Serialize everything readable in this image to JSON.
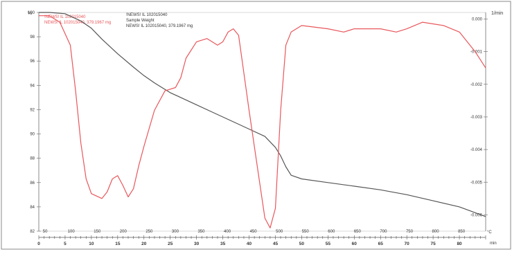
{
  "legend": {
    "red": {
      "line1": "!NEWS! IL 102015040",
      "line2": "NEWS! IL 102015040, 379.1967 mg"
    },
    "gray": {
      "line1": "!NEWS! IL 102015040",
      "line2": "Sample Weight",
      "line3": "NEWS! IL 102015040, 379.1967 mg"
    }
  },
  "chart_data": {
    "type": "line",
    "left_axis": {
      "unit": "%",
      "ticks": [
        "100",
        "98",
        "96",
        "94",
        "92",
        "90",
        "88",
        "86",
        "84",
        "82"
      ],
      "range": [
        82,
        100
      ]
    },
    "right_axis": {
      "unit": "1/min",
      "ticks": [
        "0.000",
        "-0.001",
        "-0.002",
        "-0.003",
        "-0.004",
        "-0.005",
        "-0.006"
      ],
      "range": [
        -0.0065,
        0.0002
      ]
    },
    "temperature_axis": {
      "unit": "°C",
      "ticks": [
        "50",
        "100",
        "150",
        "200",
        "250",
        "300",
        "350",
        "400",
        "450",
        "500",
        "550",
        "600",
        "650",
        "700",
        "750",
        "800",
        "850"
      ]
    },
    "time_axis": {
      "unit": "min",
      "ticks": [
        "0",
        "5",
        "10",
        "15",
        "20",
        "25",
        "30",
        "35",
        "40",
        "45",
        "50",
        "55",
        "60",
        "65",
        "70",
        "75",
        "80"
      ],
      "range": [
        0,
        85
      ]
    },
    "series": [
      {
        "name": "NEWS! IL 102015040, 379.1967 mg",
        "axis": "left",
        "color": "#555555",
        "points": [
          [
            0,
            100
          ],
          [
            2,
            100
          ],
          [
            5,
            99.9
          ],
          [
            8,
            99.3
          ],
          [
            10,
            98.7
          ],
          [
            12,
            97.8
          ],
          [
            15,
            96.6
          ],
          [
            18,
            95.5
          ],
          [
            20,
            94.8
          ],
          [
            22,
            94.2
          ],
          [
            25,
            93.4
          ],
          [
            28,
            92.8
          ],
          [
            30,
            92.4
          ],
          [
            33,
            91.8
          ],
          [
            35,
            91.4
          ],
          [
            38,
            90.8
          ],
          [
            40,
            90.4
          ],
          [
            43,
            89.8
          ],
          [
            45,
            88.9
          ],
          [
            46,
            88.2
          ],
          [
            47,
            87.3
          ],
          [
            48,
            86.6
          ],
          [
            50,
            86.3
          ],
          [
            55,
            86.0
          ],
          [
            60,
            85.7
          ],
          [
            65,
            85.4
          ],
          [
            70,
            85.0
          ],
          [
            75,
            84.5
          ],
          [
            80,
            84.0
          ],
          [
            85,
            83.2
          ]
        ]
      },
      {
        "name": "NEWS! IL 102015040, 379.1967 mg",
        "axis": "right",
        "color": "#e8565b",
        "points": [
          [
            0,
            0.0001
          ],
          [
            2,
            0.0001
          ],
          [
            4,
            -0.0001
          ],
          [
            6,
            -0.0008
          ],
          [
            7,
            -0.0022
          ],
          [
            8,
            -0.0038
          ],
          [
            9,
            -0.0049
          ],
          [
            10,
            -0.00535
          ],
          [
            12,
            -0.0055
          ],
          [
            13,
            -0.0053
          ],
          [
            14,
            -0.0049
          ],
          [
            15,
            -0.0048
          ],
          [
            16,
            -0.0051
          ],
          [
            17,
            -0.00545
          ],
          [
            18,
            -0.0052
          ],
          [
            19,
            -0.0045
          ],
          [
            20,
            -0.0039
          ],
          [
            22,
            -0.0028
          ],
          [
            24,
            -0.0022
          ],
          [
            26,
            -0.0021
          ],
          [
            27,
            -0.0018
          ],
          [
            28,
            -0.0012
          ],
          [
            30,
            -0.0007
          ],
          [
            32,
            -0.0006
          ],
          [
            34,
            -0.0008
          ],
          [
            35,
            -0.0007
          ],
          [
            36,
            -0.0004
          ],
          [
            37,
            -0.0003
          ],
          [
            38,
            -0.0005
          ],
          [
            40,
            -0.0028
          ],
          [
            42,
            -0.005
          ],
          [
            43,
            -0.0061
          ],
          [
            44,
            -0.0064
          ],
          [
            45,
            -0.0058
          ],
          [
            46,
            -0.0028
          ],
          [
            47,
            -0.0008
          ],
          [
            48,
            -0.0004
          ],
          [
            50,
            -0.0002
          ],
          [
            55,
            -0.0003
          ],
          [
            58,
            -0.0004
          ],
          [
            60,
            -0.0003
          ],
          [
            62,
            -0.0003
          ],
          [
            65,
            -0.0003
          ],
          [
            68,
            -0.0004
          ],
          [
            70,
            -0.0003
          ],
          [
            73,
            -0.0001
          ],
          [
            77,
            -0.0002
          ],
          [
            80,
            -0.0004
          ],
          [
            83,
            -0.001
          ],
          [
            85,
            -0.0015
          ]
        ]
      }
    ]
  }
}
